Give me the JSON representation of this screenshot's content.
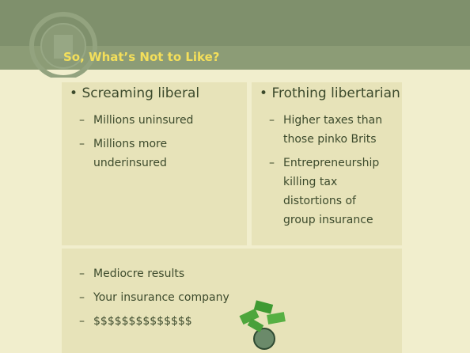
{
  "title": "So, What’s Not to Like?",
  "left": {
    "heading": "Screaming liberal",
    "items": [
      "Millions uninsured",
      "Millions more underinsured"
    ]
  },
  "right": {
    "heading": "Frothing libertarian",
    "items": [
      "Higher taxes than those pinko Brits",
      "Entrepreneurship killing tax distortions of group insurance"
    ]
  },
  "bottom": {
    "items": [
      "Mediocre results",
      "Your insurance company",
      "$$$$$$$$$$$$$$"
    ]
  }
}
